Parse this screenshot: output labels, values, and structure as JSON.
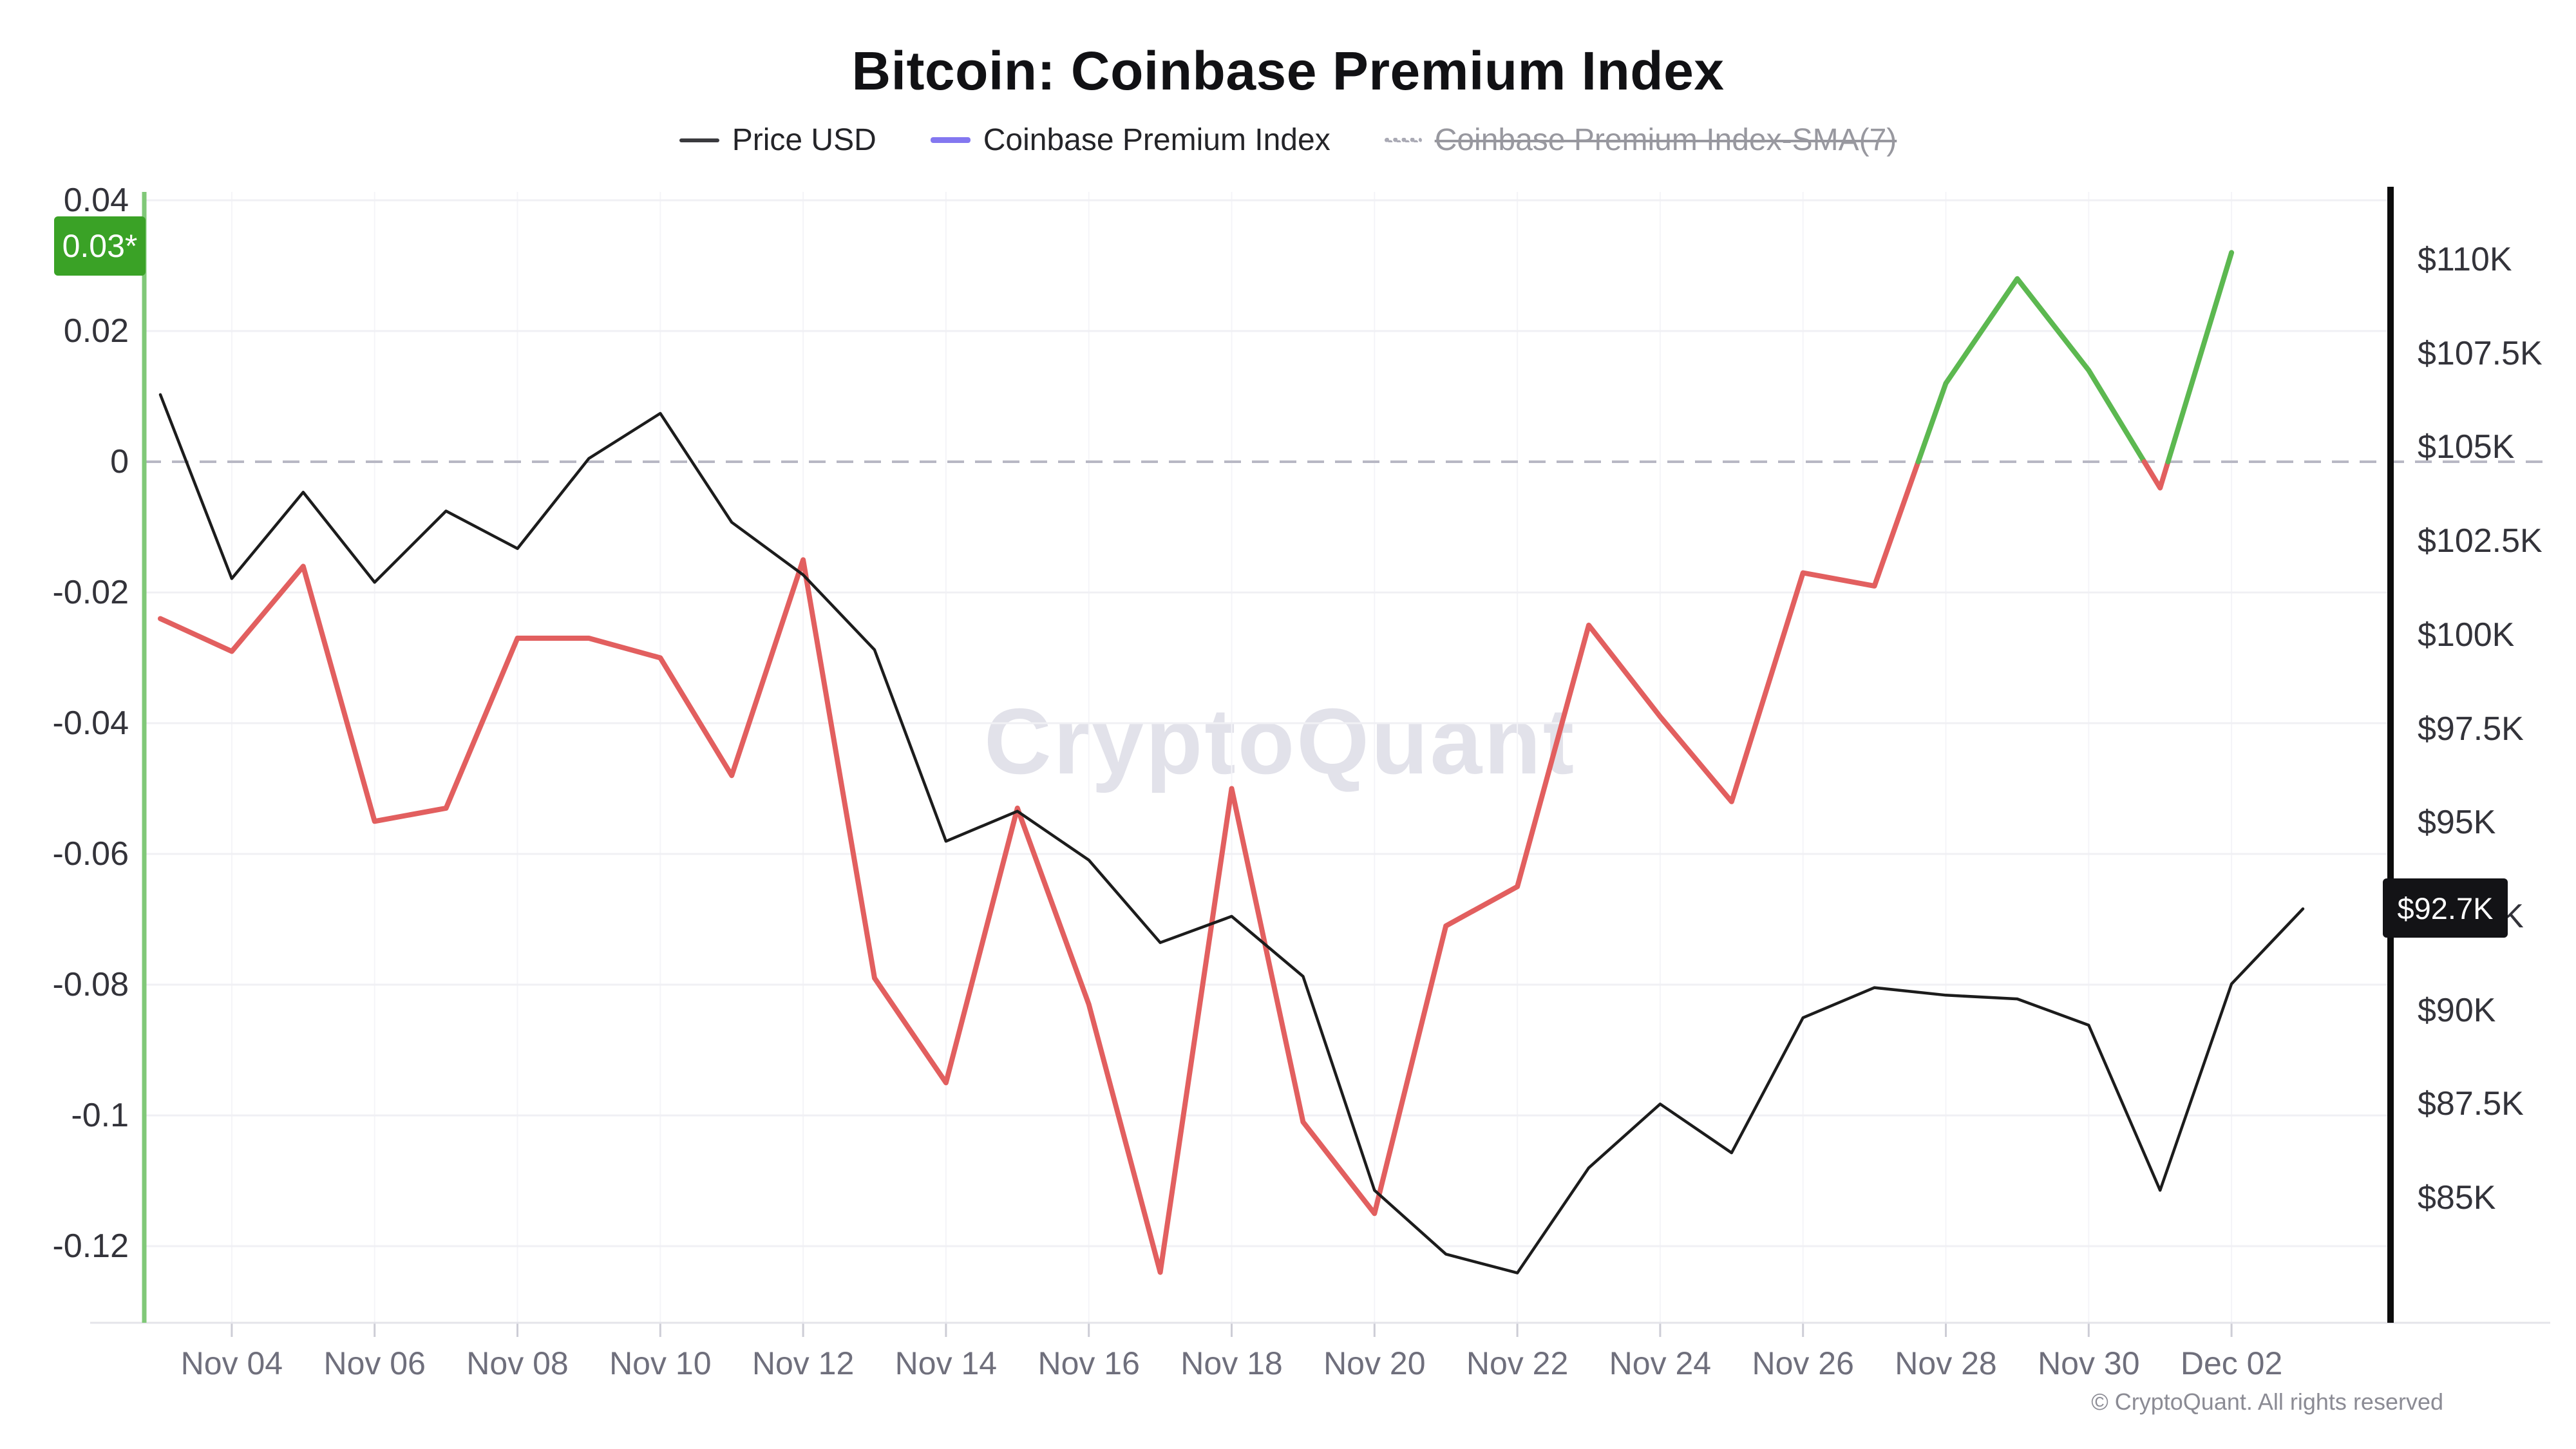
{
  "title": "Bitcoin: Coinbase Premium Index",
  "legend": {
    "price_label": "Price USD",
    "premium_label": "Coinbase Premium Index",
    "sma_label": "Coinbase Premium Index-SMA(7)"
  },
  "badges": {
    "premium_current": "0.03*",
    "price_current": "$92.7K"
  },
  "watermark": "CryptoQuant",
  "footer": "© CryptoQuant. All rights reserved",
  "colors": {
    "price_line": "#1c1c1c",
    "premium_positive": "#5cb850",
    "premium_negative": "#e25f5f",
    "badge_green": "#3aa226",
    "badge_black": "#131316",
    "left_axis_line": "#80c878",
    "right_axis_line": "#0c0c0c",
    "legend_premium_swatch": "#8377f0",
    "gridline": "#f0f0f4",
    "zero_line": "#b8b8c4"
  },
  "axes": {
    "left_ticks": [
      {
        "label": "0.04",
        "value": 0.04
      },
      {
        "label": "0.02",
        "value": 0.02
      },
      {
        "label": "0",
        "value": 0
      },
      {
        "label": "-0.02",
        "value": -0.02
      },
      {
        "label": "-0.04",
        "value": -0.04
      },
      {
        "label": "-0.06",
        "value": -0.06
      },
      {
        "label": "-0.08",
        "value": -0.08
      },
      {
        "label": "-0.1",
        "value": -0.1
      },
      {
        "label": "-0.12",
        "value": -0.12
      }
    ],
    "right_ticks": [
      {
        "label": "$110K",
        "value": 110
      },
      {
        "label": "$107.5K",
        "value": 107.5
      },
      {
        "label": "$105K",
        "value": 105
      },
      {
        "label": "$102.5K",
        "value": 102.5
      },
      {
        "label": "$100K",
        "value": 100
      },
      {
        "label": "$97.5K",
        "value": 97.5
      },
      {
        "label": "$95K",
        "value": 95
      },
      {
        "label": "$92.5K",
        "value": 92.5
      },
      {
        "label": "$90K",
        "value": 90
      },
      {
        "label": "$87.5K",
        "value": 87.5
      },
      {
        "label": "$85K",
        "value": 85
      }
    ],
    "x_ticks": [
      {
        "label": "Nov 04",
        "day": 1
      },
      {
        "label": "Nov 06",
        "day": 3
      },
      {
        "label": "Nov 08",
        "day": 5
      },
      {
        "label": "Nov 10",
        "day": 7
      },
      {
        "label": "Nov 12",
        "day": 9
      },
      {
        "label": "Nov 14",
        "day": 11
      },
      {
        "label": "Nov 16",
        "day": 13
      },
      {
        "label": "Nov 18",
        "day": 15
      },
      {
        "label": "Nov 20",
        "day": 17
      },
      {
        "label": "Nov 22",
        "day": 19
      },
      {
        "label": "Nov 24",
        "day": 21
      },
      {
        "label": "Nov 26",
        "day": 23
      },
      {
        "label": "Nov 28",
        "day": 25
      },
      {
        "label": "Nov 30",
        "day": 27
      },
      {
        "label": "Dec 02",
        "day": 29
      }
    ]
  },
  "chart_data": {
    "type": "line",
    "title": "Bitcoin: Coinbase Premium Index",
    "x": [
      "Nov 03",
      "Nov 04",
      "Nov 05",
      "Nov 06",
      "Nov 07",
      "Nov 08",
      "Nov 09",
      "Nov 10",
      "Nov 11",
      "Nov 12",
      "Nov 13",
      "Nov 14",
      "Nov 15",
      "Nov 16",
      "Nov 17",
      "Nov 18",
      "Nov 19",
      "Nov 20",
      "Nov 21",
      "Nov 22",
      "Nov 23",
      "Nov 24",
      "Nov 25",
      "Nov 26",
      "Nov 27",
      "Nov 28",
      "Nov 29",
      "Nov 30",
      "Dec 01",
      "Dec 02",
      "Dec 03"
    ],
    "series": [
      {
        "name": "Price USD",
        "axis": "right",
        "unit": "USD (thousands)",
        "color": "#1c1c1c",
        "values": [
          106.4,
          101.5,
          103.8,
          101.4,
          103.3,
          102.3,
          104.7,
          105.9,
          103.0,
          101.6,
          99.6,
          94.5,
          95.3,
          94.0,
          91.8,
          92.5,
          90.9,
          85.2,
          83.5,
          83.0,
          85.8,
          87.5,
          86.2,
          89.8,
          90.6,
          90.4,
          90.3,
          89.6,
          85.2,
          90.7,
          92.7
        ]
      },
      {
        "name": "Coinbase Premium Index",
        "axis": "left",
        "color_above_zero": "#5cb850",
        "color_below_zero": "#e25f5f",
        "values": [
          -0.024,
          -0.029,
          -0.016,
          -0.055,
          -0.053,
          -0.027,
          -0.027,
          -0.03,
          -0.048,
          -0.015,
          -0.079,
          -0.095,
          -0.053,
          -0.083,
          -0.124,
          -0.05,
          -0.101,
          -0.115,
          -0.071,
          -0.065,
          -0.025,
          -0.039,
          -0.052,
          -0.017,
          -0.019,
          0.012,
          0.028,
          0.014,
          -0.004,
          0.032,
          null
        ]
      }
    ],
    "left_axis": {
      "label": "Coinbase Premium Index",
      "ticks": [
        0.04,
        0.02,
        0,
        -0.02,
        -0.04,
        -0.06,
        -0.08,
        -0.1,
        -0.12
      ],
      "range": [
        -0.134,
        0.044
      ],
      "zero_line": "dashed"
    },
    "right_axis": {
      "label": "Price USD",
      "ticks": [
        110,
        107.5,
        105,
        102.5,
        100,
        97.5,
        95,
        92.5,
        90,
        87.5,
        85
      ],
      "range": [
        83.6,
        110.2
      ]
    },
    "legend_position": "top",
    "grid": true,
    "latest_premium": 0.03,
    "latest_price_label": "$92.7K"
  }
}
